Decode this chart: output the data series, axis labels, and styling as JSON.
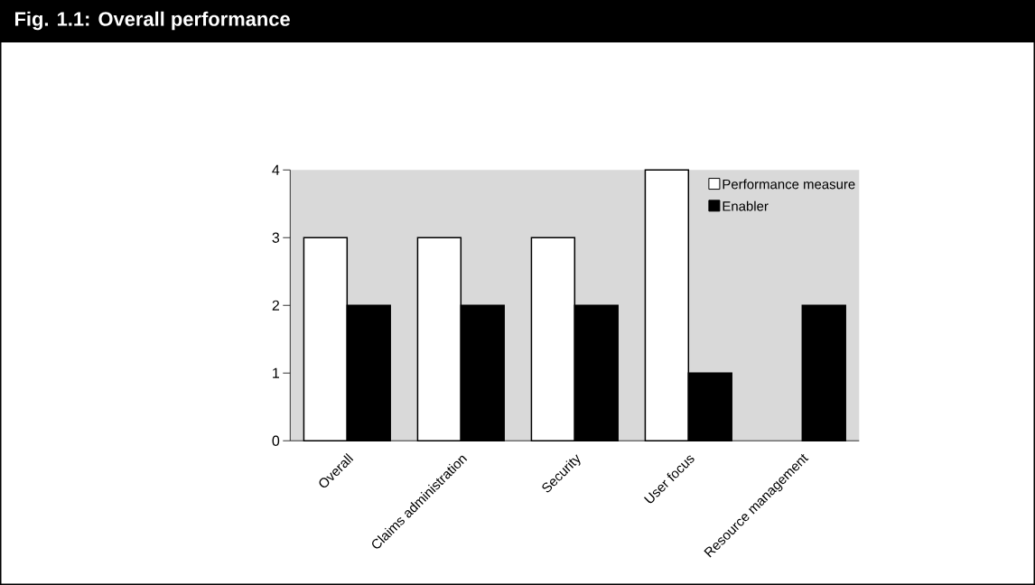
{
  "chart_data": {
    "type": "bar",
    "title": "Fig. 1.1: Overall performance",
    "categories": [
      "Overall",
      "Claims administration",
      "Security",
      "User focus",
      "Resource management"
    ],
    "series": [
      {
        "name": "Performance measure",
        "color": "#ffffff",
        "values": [
          3,
          3,
          3,
          4,
          null
        ]
      },
      {
        "name": "Enabler",
        "color": "#000000",
        "values": [
          2,
          2,
          2,
          1,
          2
        ]
      }
    ],
    "ylim": [
      0,
      4
    ],
    "yticks": [
      0,
      1,
      2,
      3,
      4
    ],
    "grid": false,
    "legend": "top right"
  }
}
